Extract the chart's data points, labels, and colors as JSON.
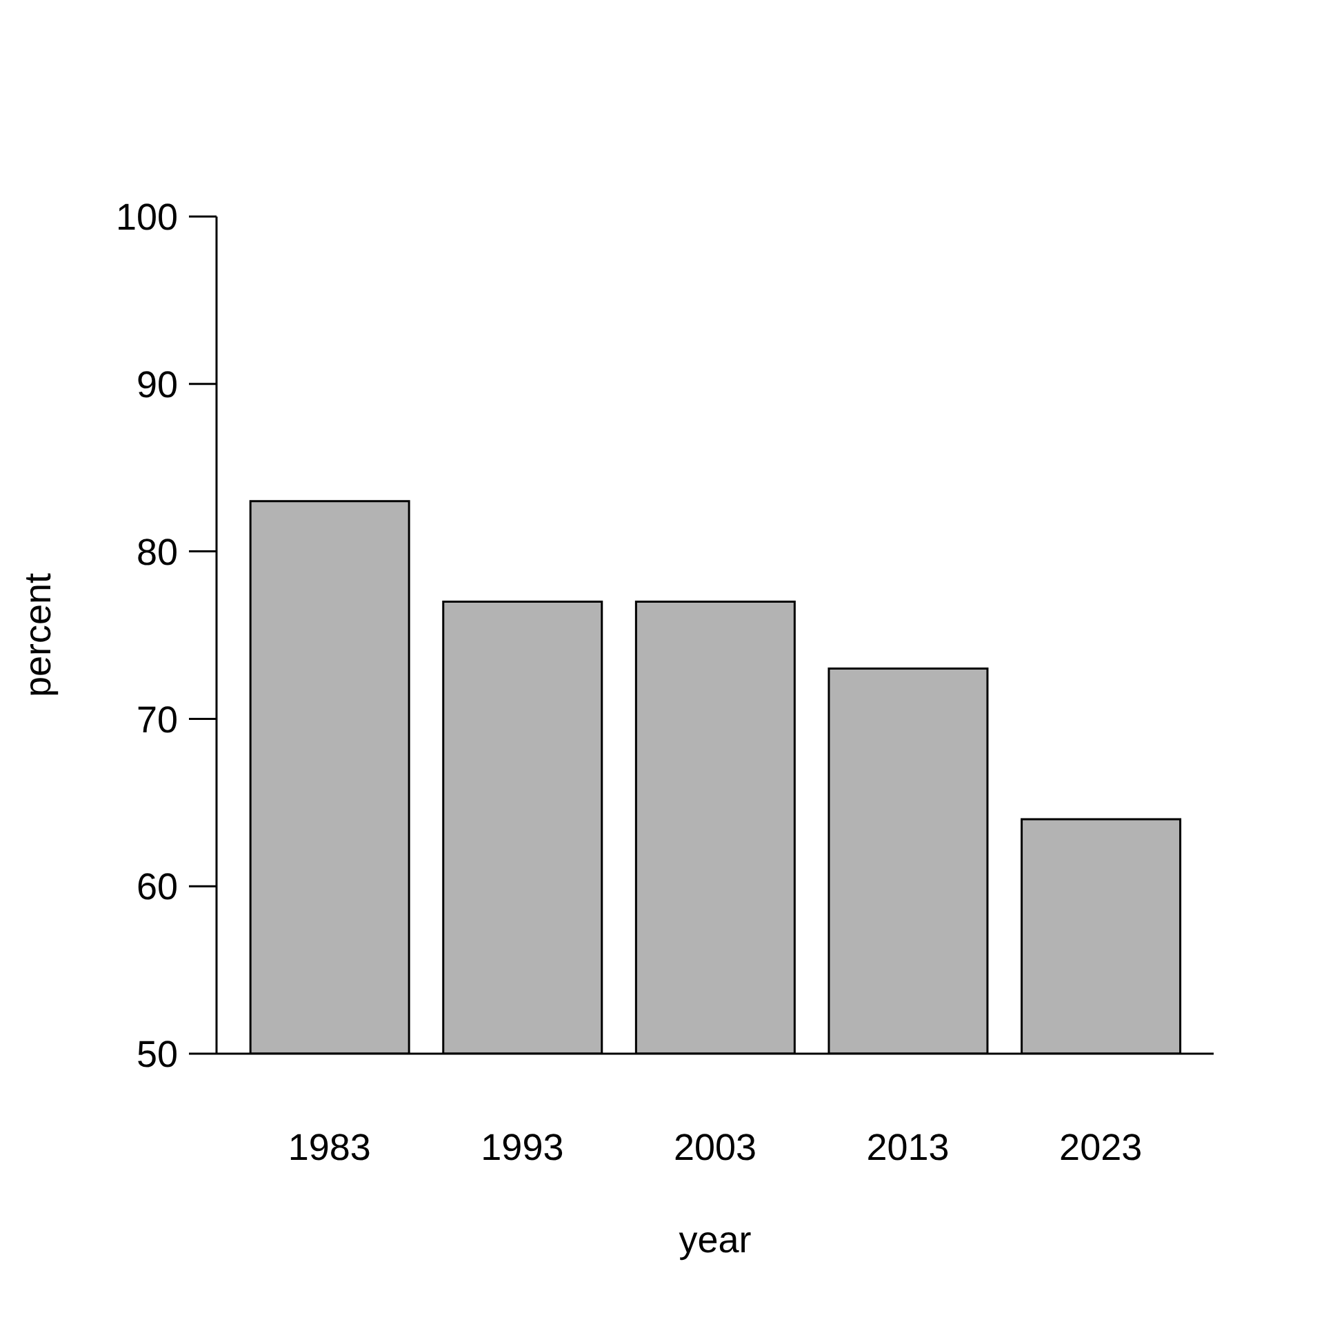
{
  "chart_data": {
    "type": "bar",
    "xlabel": "year",
    "ylabel": "percent",
    "categories": [
      "1983",
      "1993",
      "2003",
      "2013",
      "2023"
    ],
    "values": [
      83,
      77,
      77,
      73,
      64
    ],
    "color": "#b3b3b3",
    "ylim": [
      50,
      100
    ],
    "yticks": [
      50,
      60,
      70,
      80,
      90,
      100
    ]
  }
}
